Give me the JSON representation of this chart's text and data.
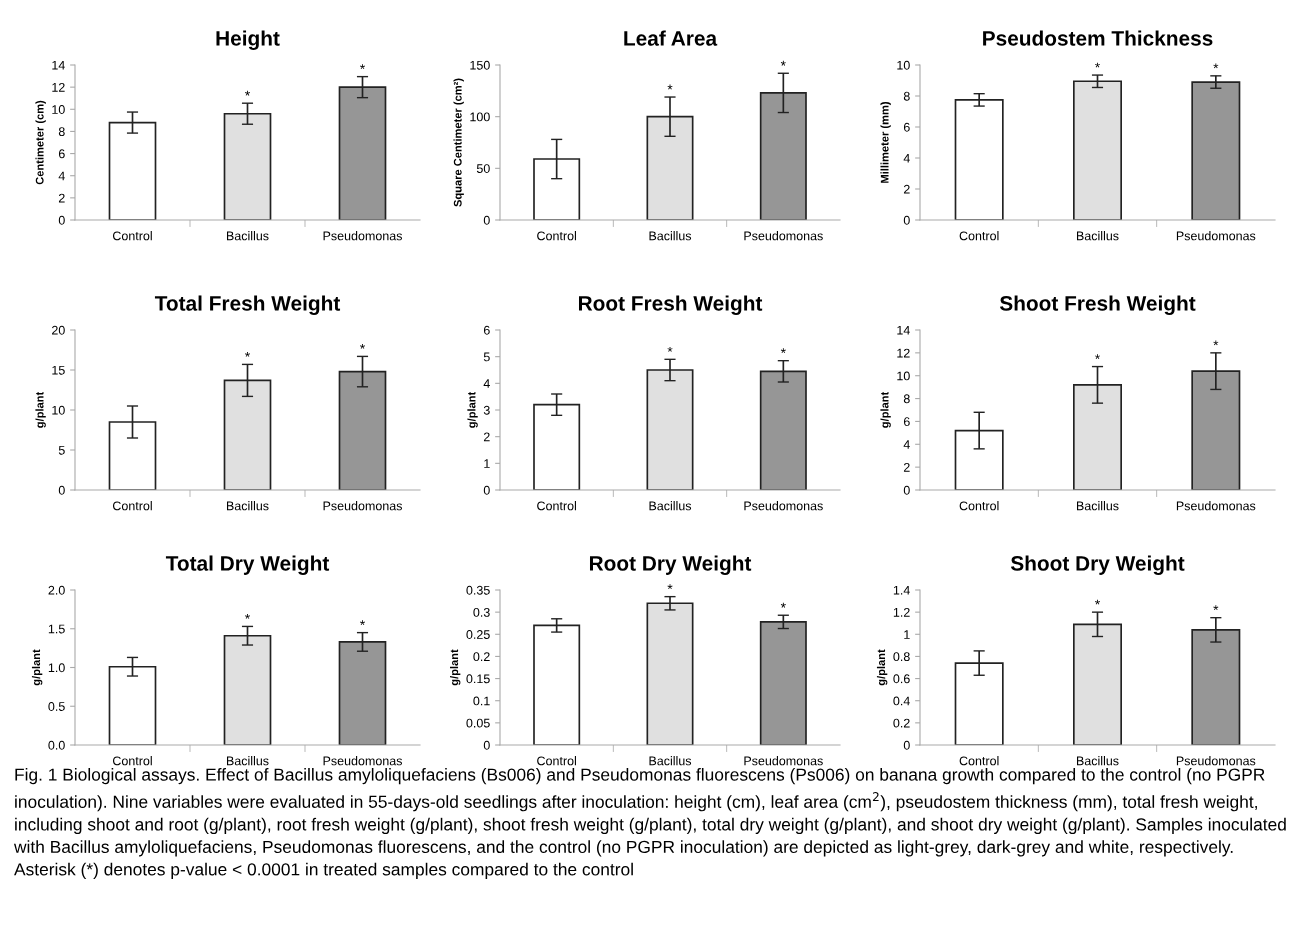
{
  "chart_data": [
    {
      "type": "bar",
      "title": "Height",
      "ylabel": "Centimeter (cm)",
      "categories": [
        "Control",
        "Bacillus",
        "Pseudomonas"
      ],
      "values": [
        8.8,
        9.6,
        12.0
      ],
      "errors": [
        0.95,
        0.95,
        0.95
      ],
      "colors": [
        "#ffffff",
        "#e0e0e0",
        "#969696"
      ],
      "ylim": [
        0,
        14
      ],
      "yticks": [
        0,
        2,
        4,
        6,
        8,
        10,
        12,
        14
      ],
      "grid": false,
      "annotations": [
        {
          "text": "*",
          "x": "Bacillus",
          "y": 10.55
        },
        {
          "text": "*",
          "x": "Pseudomonas",
          "y": 12.95
        }
      ]
    },
    {
      "type": "bar",
      "title": "Leaf Area",
      "ylabel": "Square Centimeter (cm²)",
      "categories": [
        "Control",
        "Bacillus",
        "Pseudomonas"
      ],
      "values": [
        59,
        100,
        123
      ],
      "errors": [
        19,
        19,
        19
      ],
      "colors": [
        "#ffffff",
        "#e0e0e0",
        "#969696"
      ],
      "ylim": [
        0,
        150
      ],
      "yticks": [
        0,
        50,
        100,
        150
      ],
      "grid": false,
      "annotations": [
        {
          "text": "*",
          "x": "Bacillus",
          "y": 119
        },
        {
          "text": "*",
          "x": "Pseudomonas",
          "y": 142
        }
      ]
    },
    {
      "type": "bar",
      "title": "Pseudostem Thickness",
      "ylabel": "Millimeter (mm)",
      "categories": [
        "Control",
        "Bacillus",
        "Pseudomonas"
      ],
      "values": [
        7.75,
        8.95,
        8.9
      ],
      "errors": [
        0.4,
        0.4,
        0.4
      ],
      "colors": [
        "#ffffff",
        "#e0e0e0",
        "#969696"
      ],
      "ylim": [
        0,
        10
      ],
      "yticks": [
        0,
        2,
        4,
        6,
        8,
        10
      ],
      "grid": false,
      "annotations": [
        {
          "text": "*",
          "x": "Bacillus",
          "y": 9.35
        },
        {
          "text": "*",
          "x": "Pseudomonas",
          "y": 9.3
        }
      ]
    },
    {
      "type": "bar",
      "title": "Total Fresh Weight",
      "ylabel": "g/plant",
      "categories": [
        "Control",
        "Bacillus",
        "Pseudomonas"
      ],
      "values": [
        8.5,
        13.7,
        14.8
      ],
      "errors": [
        2.0,
        2.0,
        1.9
      ],
      "colors": [
        "#ffffff",
        "#e0e0e0",
        "#969696"
      ],
      "ylim": [
        0,
        20
      ],
      "yticks": [
        0,
        5,
        10,
        15,
        20
      ],
      "grid": false,
      "annotations": [
        {
          "text": "*",
          "x": "Bacillus",
          "y": 15.7
        },
        {
          "text": "*",
          "x": "Pseudomonas",
          "y": 16.7
        }
      ]
    },
    {
      "type": "bar",
      "title": "Root Fresh Weight",
      "ylabel": "g/plant",
      "categories": [
        "Control",
        "Bacillus",
        "Pseudomonas"
      ],
      "values": [
        3.2,
        4.5,
        4.45
      ],
      "errors": [
        0.4,
        0.4,
        0.4
      ],
      "colors": [
        "#ffffff",
        "#e0e0e0",
        "#969696"
      ],
      "ylim": [
        0,
        6
      ],
      "yticks": [
        0,
        1,
        2,
        3,
        4,
        5,
        6
      ],
      "grid": false,
      "annotations": [
        {
          "text": "*",
          "x": "Bacillus",
          "y": 4.9
        },
        {
          "text": "*",
          "x": "Pseudomonas",
          "y": 4.85
        }
      ]
    },
    {
      "type": "bar",
      "title": "Shoot Fresh Weight",
      "ylabel": "g/plant",
      "categories": [
        "Control",
        "Bacillus",
        "Pseudomonas"
      ],
      "values": [
        5.2,
        9.2,
        10.4
      ],
      "errors": [
        1.6,
        1.6,
        1.6
      ],
      "colors": [
        "#ffffff",
        "#e0e0e0",
        "#969696"
      ],
      "ylim": [
        0,
        14
      ],
      "yticks": [
        0,
        2,
        4,
        6,
        8,
        10,
        12,
        14
      ],
      "grid": false,
      "annotations": [
        {
          "text": "*",
          "x": "Bacillus",
          "y": 10.8
        },
        {
          "text": "*",
          "x": "Pseudomonas",
          "y": 12.0
        }
      ]
    },
    {
      "type": "bar",
      "title": "Total Dry Weight",
      "ylabel": "g/plant",
      "categories": [
        "Control",
        "Bacillus",
        "Pseudomonas"
      ],
      "values": [
        1.01,
        1.41,
        1.33
      ],
      "errors": [
        0.12,
        0.12,
        0.12
      ],
      "colors": [
        "#ffffff",
        "#e0e0e0",
        "#969696"
      ],
      "ylim": [
        0,
        2
      ],
      "yticks": [
        {
          "value": 0,
          "label": "0.0"
        },
        {
          "value": 0.5,
          "label": "0.5"
        },
        {
          "value": 1,
          "label": "1.0"
        },
        {
          "value": 1.5,
          "label": "1.5"
        },
        {
          "value": 2,
          "label": "2.0"
        }
      ],
      "grid": false,
      "annotations": [
        {
          "text": "*",
          "x": "Bacillus",
          "y": 1.53
        },
        {
          "text": "*",
          "x": "Pseudomonas",
          "y": 1.45
        }
      ]
    },
    {
      "type": "bar",
      "title": "Root Dry Weight",
      "ylabel": "g/plant",
      "categories": [
        "Control",
        "Bacillus",
        "Pseudomonas"
      ],
      "values": [
        0.27,
        0.32,
        0.278
      ],
      "errors": [
        0.015,
        0.015,
        0.015
      ],
      "colors": [
        "#ffffff",
        "#e0e0e0",
        "#969696"
      ],
      "ylim": [
        0,
        0.35
      ],
      "yticks": [
        0,
        0.05,
        0.1,
        0.15,
        0.2,
        0.25,
        0.3,
        0.35
      ],
      "grid": false,
      "annotations": [
        {
          "text": "*",
          "x": "Bacillus",
          "y": 0.335
        },
        {
          "text": "*",
          "x": "Pseudomonas",
          "y": 0.293
        }
      ]
    },
    {
      "type": "bar",
      "title": "Shoot Dry Weight",
      "ylabel": "g/plant",
      "categories": [
        "Control",
        "Bacillus",
        "Pseudomonas"
      ],
      "values": [
        0.74,
        1.09,
        1.04
      ],
      "errors": [
        0.11,
        0.11,
        0.11
      ],
      "colors": [
        "#ffffff",
        "#e0e0e0",
        "#969696"
      ],
      "ylim": [
        0,
        1.4
      ],
      "yticks": [
        0,
        0.2,
        0.4,
        0.6,
        0.8,
        1,
        1.2,
        1.4
      ],
      "grid": false,
      "annotations": [
        {
          "text": "*",
          "x": "Bacillus",
          "y": 1.2
        },
        {
          "text": "*",
          "x": "Pseudomonas",
          "y": 1.15
        },
        "Fig. 1 Biological assays. Effect of Bacillus amyloliquefaciens (Bs006) and Pseudomonas fluorescens (Ps006) on banana growth compared to the control (no PGPR inoculation). Nine variables were evaluated in 55-days-old seedlings after inoculation: height (cm), leaf area (cm$^{2}$), pseudostem thickness (mm), total fresh weight, including shoot and root (g/plant), root fresh weight (g/plant), shoot fresh weight (g/plant), total dry weight (g/plant), and shoot dry weight (g/plant). Samples inoculated with Bacillus amyloliquefaciens, Pseudomonas fluorescens, and the control (no PGPR inoculation) are depicted as light-grey, dark-grey and white, respectively. Asterisk (*) denotes p-value < 0.0001 in treated samples compared to the control"
      ]
    }
  ]
}
